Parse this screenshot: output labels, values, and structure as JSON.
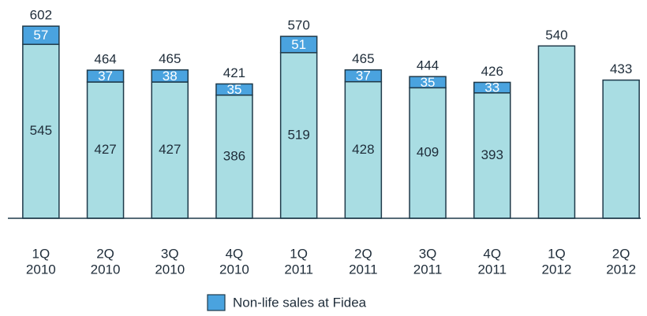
{
  "chart_data": {
    "type": "stacked_bar",
    "categories": [
      [
        "1Q",
        "2010"
      ],
      [
        "2Q",
        "2010"
      ],
      [
        "3Q",
        "2010"
      ],
      [
        "4Q",
        "2010"
      ],
      [
        "1Q",
        "2011"
      ],
      [
        "2Q",
        "2011"
      ],
      [
        "3Q",
        "2011"
      ],
      [
        "4Q",
        "2011"
      ],
      [
        "1Q",
        "2012"
      ],
      [
        "2Q",
        "2012"
      ]
    ],
    "series": [
      {
        "color": "#a9dde3",
        "values": [
          545,
          427,
          427,
          386,
          519,
          428,
          409,
          393,
          540,
          433
        ]
      },
      {
        "name": "Non-life sales at Fidea",
        "color": "#4aa3df",
        "values": [
          57,
          37,
          38,
          35,
          51,
          37,
          35,
          33,
          null,
          null
        ]
      }
    ],
    "totals": [
      602,
      464,
      465,
      421,
      570,
      465,
      444,
      426,
      540,
      433
    ],
    "ylim": [
      0,
      600
    ],
    "legend": "bottom"
  }
}
